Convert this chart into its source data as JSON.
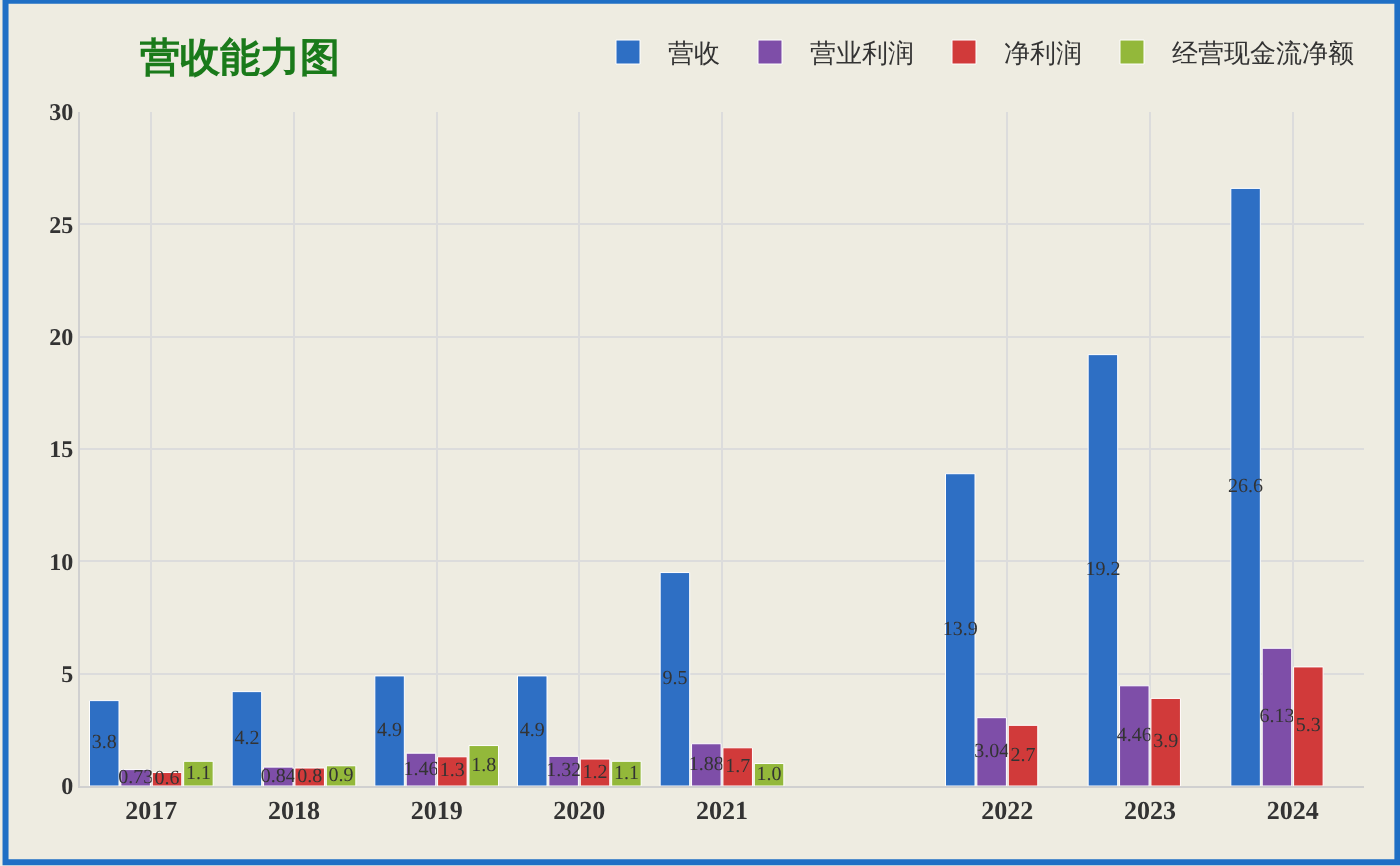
{
  "chart_data": {
    "type": "bar",
    "title": "营收能力图",
    "categories": [
      "2017",
      "2018",
      "2019",
      "2020",
      "2021",
      null,
      "2022",
      "2023",
      "2024"
    ],
    "series": [
      {
        "name": "营收",
        "color": "#2e6fc4",
        "values": [
          3.8,
          4.2,
          4.9,
          4.9,
          9.5,
          null,
          13.9,
          19.2,
          26.6
        ]
      },
      {
        "name": "营业利润",
        "color": "#7e4ea8",
        "values": [
          0.73,
          0.84,
          1.46,
          1.32,
          1.88,
          null,
          3.04,
          4.46,
          6.13
        ]
      },
      {
        "name": "净利润",
        "color": "#d13a3a",
        "values": [
          0.6,
          0.8,
          1.3,
          1.2,
          1.7,
          null,
          2.7,
          3.9,
          5.3
        ]
      },
      {
        "name": "经营现金流净额",
        "color": "#93b83a",
        "values": [
          1.1,
          0.9,
          1.8,
          1.1,
          1.0,
          null,
          null,
          null,
          null
        ],
        "value_labels": [
          "1.1",
          "0.9",
          "1.8",
          "1.1",
          "1.0",
          null,
          null,
          null,
          null
        ]
      }
    ],
    "ylim": [
      0,
      30
    ],
    "yticks": [
      0,
      5,
      10,
      15,
      20,
      25,
      30
    ],
    "data_labels": true,
    "grid": true,
    "legend": "top right"
  }
}
